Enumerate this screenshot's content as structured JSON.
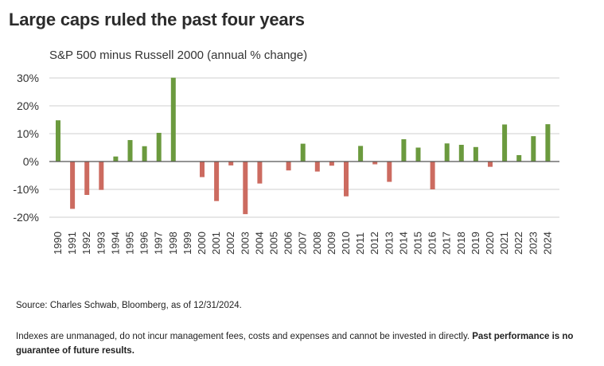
{
  "title": "Large caps ruled the past four years",
  "source": "Source: Charles Schwab, Bloomberg, as of 12/31/2024.",
  "disclaimer": {
    "text": "Indexes are unmanaged, do not incur management fees, costs and expenses and cannot be invested in directly. ",
    "bold": "Past performance is no guarantee of future results."
  },
  "colors": {
    "positive": "#6b9a3e",
    "negative": "#cc6b60",
    "grid": "#cfcfcf",
    "axis": "#555555"
  },
  "chart_data": {
    "type": "bar",
    "title": "S&P 500 minus Russell 2000 (annual % change)",
    "xlabel": "",
    "ylabel": "",
    "ylim": [
      -20,
      30
    ],
    "yticks": [
      30,
      20,
      10,
      0,
      -10,
      -20
    ],
    "ytick_labels": [
      "30%",
      "20%",
      "10%",
      "0%",
      "-10%",
      "-20%"
    ],
    "grid": true,
    "categories": [
      "1990",
      "1991",
      "1992",
      "1993",
      "1994",
      "1995",
      "1996",
      "1997",
      "1998",
      "1999",
      "2000",
      "2001",
      "2002",
      "2003",
      "2004",
      "2005",
      "2006",
      "2007",
      "2008",
      "2009",
      "2010",
      "2011",
      "2012",
      "2013",
      "2014",
      "2015",
      "2016",
      "2017",
      "2018",
      "2019",
      "2020",
      "2021",
      "2022",
      "2023",
      "2024"
    ],
    "values": [
      14.8,
      -17,
      -12,
      -10.2,
      1.8,
      7.7,
      5.5,
      10.3,
      30.1,
      0,
      -5.6,
      -14.2,
      -1.4,
      -18.9,
      -7.9,
      0,
      -3.2,
      6.4,
      -3.6,
      -1.5,
      -12.5,
      5.6,
      -1,
      -7.3,
      8,
      5,
      -10,
      6.5,
      6,
      5.2,
      -1.9,
      13.3,
      2.3,
      9.1,
      13.4
    ]
  }
}
